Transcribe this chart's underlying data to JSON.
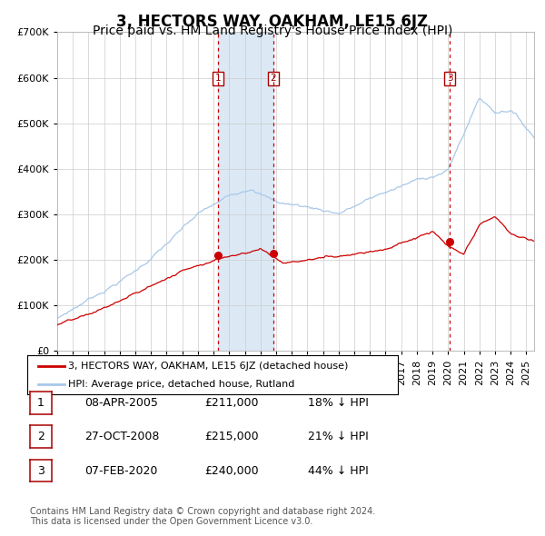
{
  "title": "3, HECTORS WAY, OAKHAM, LE15 6JZ",
  "subtitle": "Price paid vs. HM Land Registry's House Price Index (HPI)",
  "footer_line1": "Contains HM Land Registry data © Crown copyright and database right 2024.",
  "footer_line2": "This data is licensed under the Open Government Licence v3.0.",
  "legend_red": "3, HECTORS WAY, OAKHAM, LE15 6JZ (detached house)",
  "legend_blue": "HPI: Average price, detached house, Rutland",
  "transactions": [
    {
      "num": 1,
      "date": "08-APR-2005",
      "price": 211000,
      "pct": "18%",
      "dir": "↓"
    },
    {
      "num": 2,
      "date": "27-OCT-2008",
      "price": 215000,
      "pct": "21%",
      "dir": "↓"
    },
    {
      "num": 3,
      "date": "07-FEB-2020",
      "price": 240000,
      "pct": "44%",
      "dir": "↓"
    }
  ],
  "transaction_dates_decimal": [
    2005.27,
    2008.82,
    2020.1
  ],
  "transaction_prices": [
    211000,
    215000,
    240000
  ],
  "hpi_color": "#a8c8e8",
  "price_color": "#cc0000",
  "shade_color": "#dce9f5",
  "vline_color_red": "#cc0000",
  "background_color": "#ffffff",
  "grid_color": "#cccccc",
  "ylim": [
    0,
    700000
  ],
  "yticks": [
    0,
    100000,
    200000,
    300000,
    400000,
    500000,
    600000,
    700000
  ],
  "xlim_start": 1995.0,
  "xlim_end": 2025.5,
  "title_fontsize": 12,
  "subtitle_fontsize": 10,
  "axis_fontsize": 8,
  "footer_fontsize": 7
}
